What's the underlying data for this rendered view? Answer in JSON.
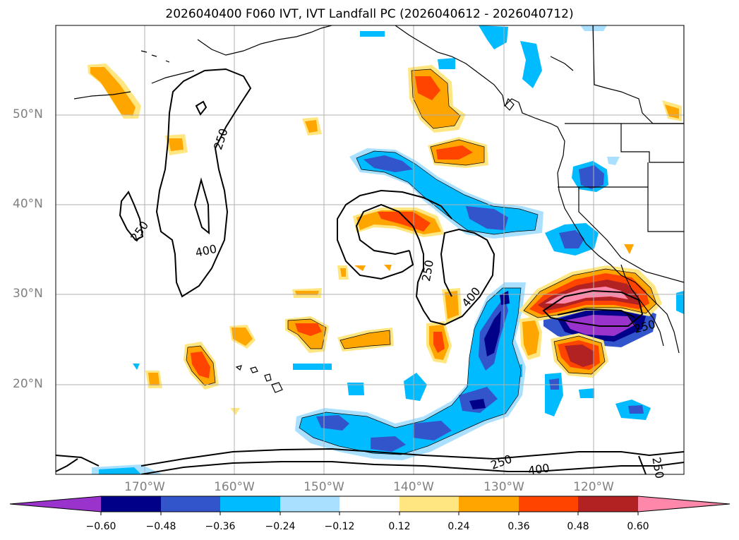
{
  "title": "2026040400 F060 IVT, IVT Landfall PC (2026040612 - 2026040712)",
  "lat_labels": [
    "50°N",
    "40°N",
    "30°N",
    "20°N"
  ],
  "lon_labels": [
    "170°W",
    "160°W",
    "150°W",
    "140°W",
    "130°W",
    "120°W"
  ],
  "contour_labels": [
    "250",
    "250",
    "400",
    "250",
    "400",
    "250",
    "250",
    "400",
    "250"
  ],
  "colorbar": {
    "ticks": [
      "−0.60",
      "−0.48",
      "−0.36",
      "−0.24",
      "−0.12",
      "0.12",
      "0.24",
      "0.36",
      "0.48",
      "0.60"
    ],
    "colors": [
      "#9933cc",
      "#000088",
      "#3355cc",
      "#00bbff",
      "#aae0ff",
      "#ffffff",
      "#ffe680",
      "#ffa500",
      "#ff4400",
      "#b22222",
      "#ff88aa"
    ]
  }
}
